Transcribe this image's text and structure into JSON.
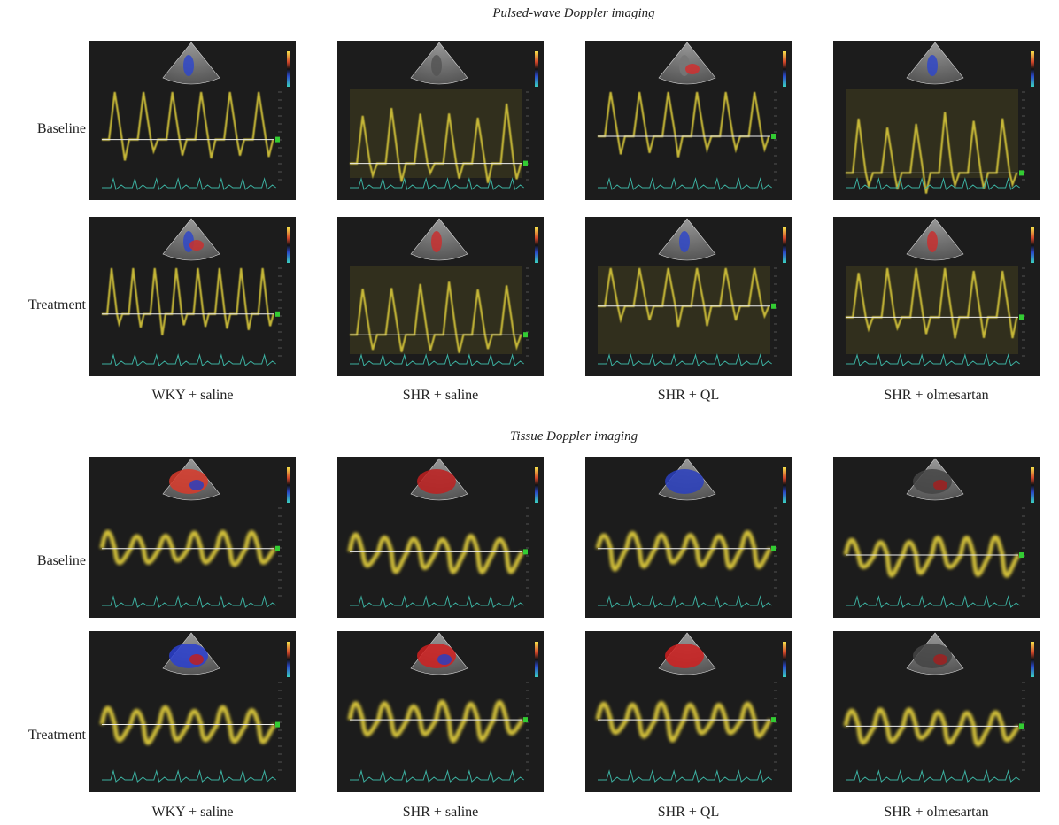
{
  "sections": [
    {
      "title": "Pulsed-wave Doppler imaging",
      "rows": [
        "Baseline",
        "Treatment"
      ],
      "columns": [
        "WKY + saline",
        "SHR + saline",
        "SHR + QL",
        "SHR + olmesartan"
      ]
    },
    {
      "title": "Tissue Doppler imaging",
      "rows": [
        "Baseline",
        "Treatment"
      ],
      "columns": [
        "WKY + saline",
        "SHR + saline",
        "SHR + QL",
        "SHR + olmesartan"
      ]
    }
  ]
}
